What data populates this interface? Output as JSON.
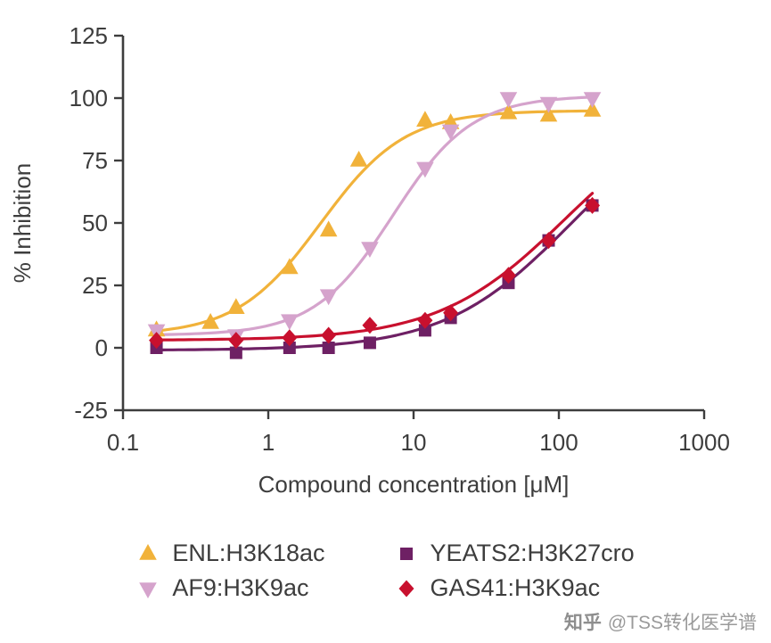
{
  "watermark": {
    "brand": "知乎",
    "handle": "@TSS转化医学谱"
  },
  "chart_data": {
    "type": "scatter",
    "title": "",
    "xlabel": "Compound concentration [μM]",
    "ylabel": "% Inhibition",
    "x_scale": "log",
    "xlim": [
      0.1,
      1000
    ],
    "ylim": [
      -25,
      125
    ],
    "x_ticks": [
      0.1,
      1,
      10,
      100,
      1000
    ],
    "x_tick_labels": [
      "0.1",
      "1",
      "10",
      "100",
      "1000"
    ],
    "y_ticks": [
      -25,
      0,
      25,
      50,
      75,
      100,
      125
    ],
    "grid": false,
    "legend_position": "bottom",
    "legend_columns": 2,
    "axis_color": "#3d3d3d",
    "series": [
      {
        "name": "ENL:H3K18ac",
        "marker": "triangle-up",
        "color": "#F1B23A",
        "x": [
          0.17,
          0.4,
          0.6,
          1.4,
          2.6,
          4.2,
          12,
          18,
          45,
          85,
          170
        ],
        "y": [
          7,
          10,
          16,
          32,
          47,
          75,
          91,
          90,
          94,
          93,
          95
        ],
        "fit": {
          "bottom": 5,
          "top": 95,
          "ec50": 2.3,
          "hill": 1.5
        }
      },
      {
        "name": "AF9:H3K9ac",
        "marker": "triangle-down",
        "color": "#D5A3CC",
        "x": [
          0.17,
          0.6,
          1.4,
          2.6,
          5,
          12,
          18,
          45,
          85,
          170
        ],
        "y": [
          7,
          5,
          11,
          21,
          40,
          72,
          87,
          100,
          98,
          100
        ],
        "fit": {
          "bottom": 5,
          "top": 101,
          "ec50": 7.2,
          "hill": 1.6
        }
      },
      {
        "name": "YEATS2:H3K27cro",
        "marker": "square",
        "color": "#6E2064",
        "x": [
          0.17,
          0.6,
          1.4,
          2.6,
          5,
          12,
          18,
          45,
          85,
          170
        ],
        "y": [
          0,
          -2,
          0,
          0,
          2,
          7,
          12,
          26,
          43,
          57
        ],
        "fit": {
          "bottom": -1,
          "top": 100,
          "ec50": 120,
          "hill": 1.0
        }
      },
      {
        "name": "GAS41:H3K9ac",
        "marker": "diamond",
        "color": "#C8102E",
        "x": [
          0.17,
          0.6,
          1.4,
          2.6,
          5,
          12,
          18,
          45,
          85,
          170
        ],
        "y": [
          3,
          3,
          4,
          5,
          9,
          11,
          14,
          29,
          43,
          57
        ],
        "fit": {
          "bottom": 3,
          "top": 100,
          "ec50": 110,
          "hill": 1.0
        }
      }
    ]
  }
}
